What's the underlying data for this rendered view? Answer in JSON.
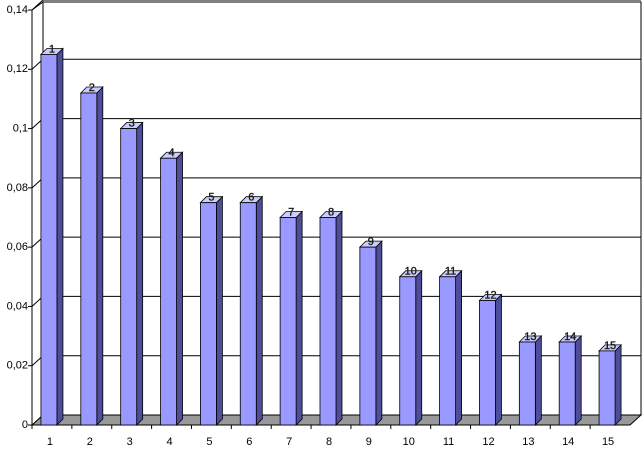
{
  "chart_data": {
    "type": "bar3d",
    "categories": [
      "1",
      "2",
      "3",
      "4",
      "5",
      "6",
      "7",
      "8",
      "9",
      "10",
      "11",
      "12",
      "13",
      "14",
      "15"
    ],
    "values": [
      0.125,
      0.112,
      0.1,
      0.09,
      0.075,
      0.075,
      0.07,
      0.07,
      0.06,
      0.05,
      0.05,
      0.042,
      0.028,
      0.028,
      0.025
    ],
    "color": "#9999ff",
    "ylim": [
      0,
      0.14
    ],
    "yticks": [
      0,
      {
        "value": 0.02,
        "label": "0,02"
      },
      {
        "value": 0.04,
        "label": "0,04"
      },
      {
        "value": 0.06,
        "label": "0,06"
      },
      {
        "value": 0.08,
        "label": "0,08"
      },
      {
        "value": 0.1,
        "label": "0,1"
      },
      {
        "value": 0.12,
        "label": "0,12"
      },
      {
        "value": 0.14,
        "label": "0,14"
      }
    ],
    "grid": true
  }
}
